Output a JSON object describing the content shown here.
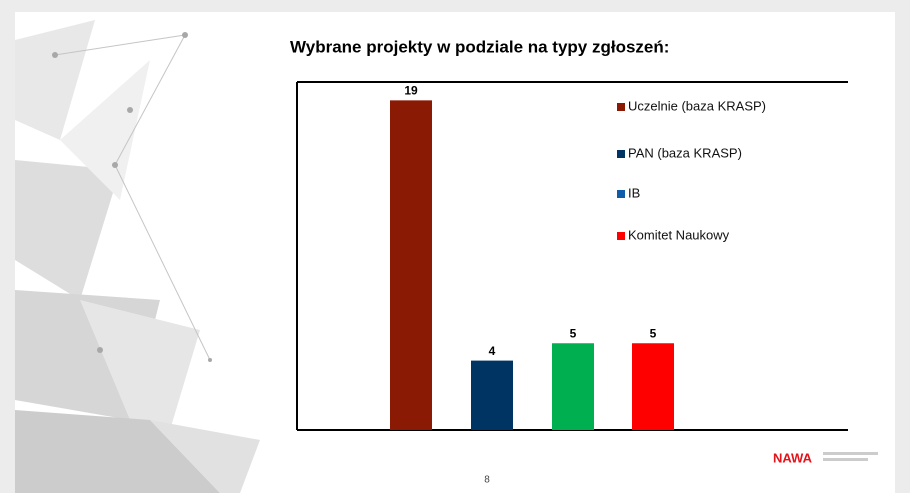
{
  "chart_data": {
    "type": "bar",
    "title": "Wybrane projekty w podziale na typy  zgłoszeń:",
    "series": [
      {
        "name": "Uczelnie (baza KRASP)",
        "color": "#8b1a05",
        "bar_color": "#8b1a05",
        "values": [
          19
        ]
      },
      {
        "name": "PAN (baza KRASP)",
        "color": "#003462",
        "bar_color": "#003462",
        "values": [
          4
        ]
      },
      {
        "name": "IB",
        "color": "#0f5ca8",
        "bar_color": "#00b050",
        "values": [
          5
        ]
      },
      {
        "name": "Komitet Naukowy",
        "color": "#ff0000",
        "bar_color": "#ff0000",
        "values": [
          5
        ]
      }
    ],
    "ylim": [
      0,
      20
    ],
    "legend": "upper right"
  },
  "slide_number": "8",
  "logo": "NAWA"
}
